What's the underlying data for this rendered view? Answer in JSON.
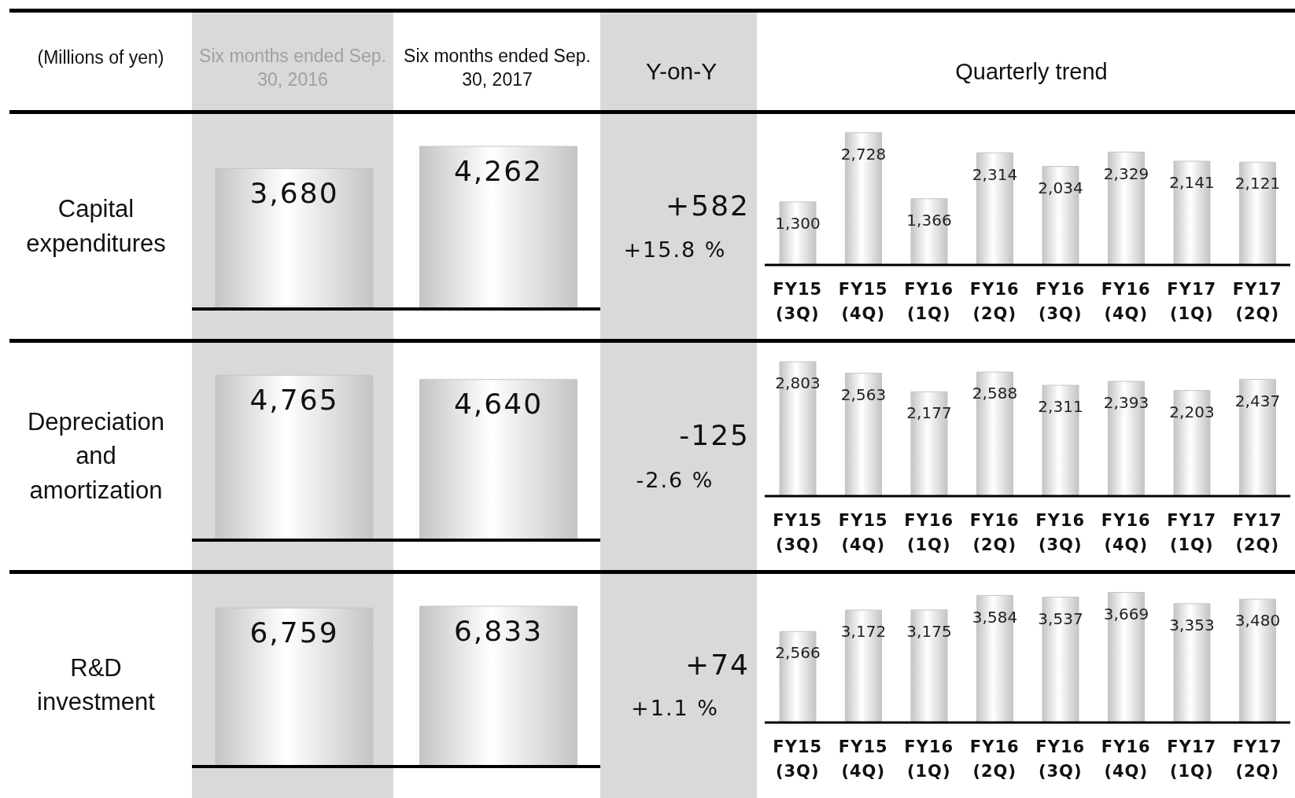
{
  "chart_data": [
    {
      "type": "other",
      "annotations": [
        "(Millions of yen)",
        "Six months ended Sep. 30, 2016",
        "Six months ended Sep. 30, 2017",
        "Y-on-Y",
        "Quarterly trend"
      ]
    },
    {
      "type": "bar",
      "title": "Capital expenditures",
      "categories": [
        null,
        null
      ],
      "values": [
        3680,
        4262
      ],
      "color": "#c4c4c4",
      "value_labels": [
        "3,680",
        "4,262"
      ],
      "annotations": [
        "+582",
        "+15.8 %"
      ]
    },
    {
      "type": "bar",
      "categories": [
        "FY15 (3Q)",
        "FY15 (4Q)",
        "FY16 (1Q)",
        "FY16 (2Q)",
        "FY16 (3Q)",
        "FY16 (4Q)",
        "FY17 (1Q)",
        "FY17 (2Q)"
      ],
      "values": [
        1300,
        2728,
        1366,
        2314,
        2034,
        2329,
        2141,
        2121
      ],
      "color": "#c4c4c4",
      "value_labels": [
        "1,300",
        "2,728",
        "1,366",
        "2,314",
        "2,034",
        "2,329",
        "2,141",
        "2,121"
      ]
    },
    {
      "type": "bar",
      "title": "Depreciation and amortization",
      "categories": [
        null,
        null
      ],
      "values": [
        4765,
        4640
      ],
      "color": "#c4c4c4",
      "value_labels": [
        "4,765",
        "4,640"
      ],
      "annotations": [
        "-125",
        "-2.6 %"
      ]
    },
    {
      "type": "bar",
      "categories": [
        "FY15 (3Q)",
        "FY15 (4Q)",
        "FY16 (1Q)",
        "FY16 (2Q)",
        "FY16 (3Q)",
        "FY16 (4Q)",
        "FY17 (1Q)",
        "FY17 (2Q)"
      ],
      "values": [
        2803,
        2563,
        2177,
        2588,
        2311,
        2393,
        2203,
        2437
      ],
      "color": "#c4c4c4",
      "value_labels": [
        "2,803",
        "2,563",
        "2,177",
        "2,588",
        "2,311",
        "2,393",
        "2,203",
        "2,437"
      ]
    },
    {
      "type": "bar",
      "title": "R&D investment",
      "categories": [
        null,
        null
      ],
      "values": [
        6759,
        6833
      ],
      "color": "#c4c4c4",
      "value_labels": [
        "6,759",
        "6,833"
      ],
      "annotations": [
        "+74",
        "+1.1 %"
      ]
    },
    {
      "type": "bar",
      "categories": [
        "FY15 (3Q)",
        "FY15 (4Q)",
        "FY16 (1Q)",
        "FY16 (2Q)",
        "FY16 (3Q)",
        "FY16 (4Q)",
        "FY17 (1Q)",
        "FY17 (2Q)"
      ],
      "values": [
        2566,
        3172,
        3175,
        3584,
        3537,
        3669,
        3353,
        3480
      ],
      "color": "#c4c4c4",
      "value_labels": [
        "2,566",
        "3,172",
        "3,175",
        "3,584",
        "3,537",
        "3,669",
        "3,353",
        "3,480"
      ]
    }
  ]
}
